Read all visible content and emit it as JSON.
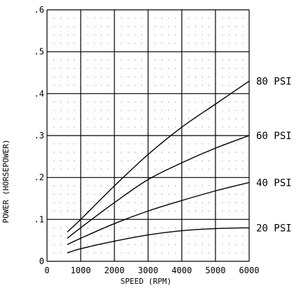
{
  "chart_data": {
    "type": "line",
    "title": "",
    "xlabel": "SPEED (RPM)",
    "ylabel": "POWER (HORSEPOWER)",
    "xlim": [
      0,
      6000
    ],
    "ylim": [
      0,
      0.6
    ],
    "x_ticks": [
      0,
      1000,
      2000,
      3000,
      4000,
      5000,
      6000
    ],
    "x_tick_labels": [
      "0",
      "1000",
      "2000",
      "3000",
      "4000",
      "5000",
      "6000"
    ],
    "y_ticks": [
      0,
      0.1,
      0.2,
      0.3,
      0.4,
      0.5,
      0.6
    ],
    "y_tick_labels": [
      "0",
      ".1",
      ".2",
      ".3",
      ".4",
      ".5",
      ".6"
    ],
    "grid": true,
    "minor_dot_grid": true,
    "colors": {
      "line": "#000000",
      "grid": "#000000",
      "background": "#ffffff"
    },
    "series": [
      {
        "name": "80 PSI",
        "x": [
          600,
          1000,
          2000,
          3000,
          4000,
          5000,
          6000
        ],
        "y": [
          0.07,
          0.1,
          0.18,
          0.255,
          0.32,
          0.375,
          0.43
        ]
      },
      {
        "name": "60 PSI",
        "x": [
          600,
          1000,
          2000,
          3000,
          4000,
          5000,
          6000
        ],
        "y": [
          0.055,
          0.08,
          0.14,
          0.195,
          0.235,
          0.27,
          0.3
        ]
      },
      {
        "name": "40 PSI",
        "x": [
          600,
          1000,
          2000,
          3000,
          4000,
          5000,
          6000
        ],
        "y": [
          0.04,
          0.055,
          0.09,
          0.12,
          0.145,
          0.168,
          0.188
        ]
      },
      {
        "name": "20 PSI",
        "x": [
          600,
          1000,
          2000,
          3000,
          4000,
          5000,
          6000
        ],
        "y": [
          0.02,
          0.03,
          0.048,
          0.063,
          0.073,
          0.078,
          0.08
        ]
      }
    ]
  }
}
